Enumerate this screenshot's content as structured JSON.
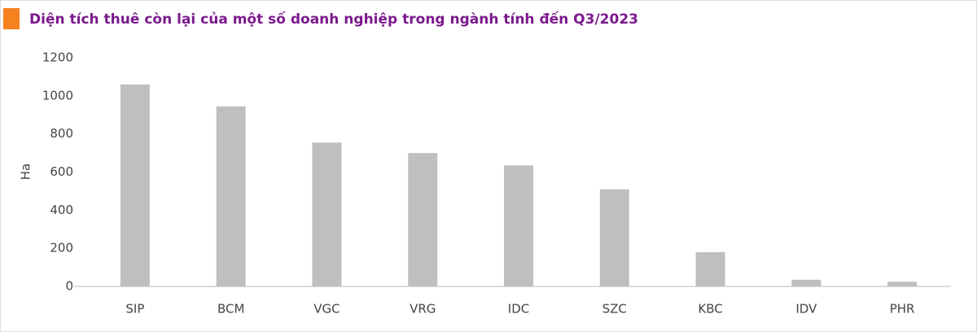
{
  "chart_data": {
    "type": "bar",
    "title": "Diện tích thuê còn lại của một số doanh nghiệp trong ngành tính đến Q3/2023",
    "y_label": "Ha",
    "categories": [
      "SIP",
      "BCM",
      "VGC",
      "VRG",
      "IDC",
      "SZC",
      "KBC",
      "IDV",
      "PHR"
    ],
    "values": [
      1060,
      945,
      755,
      700,
      635,
      510,
      180,
      35,
      25
    ],
    "color": "#bfbfbf",
    "ylim": [
      0,
      1200
    ],
    "yticks": [
      0,
      200,
      400,
      600,
      800,
      1000,
      1200
    ],
    "grid": false
  }
}
